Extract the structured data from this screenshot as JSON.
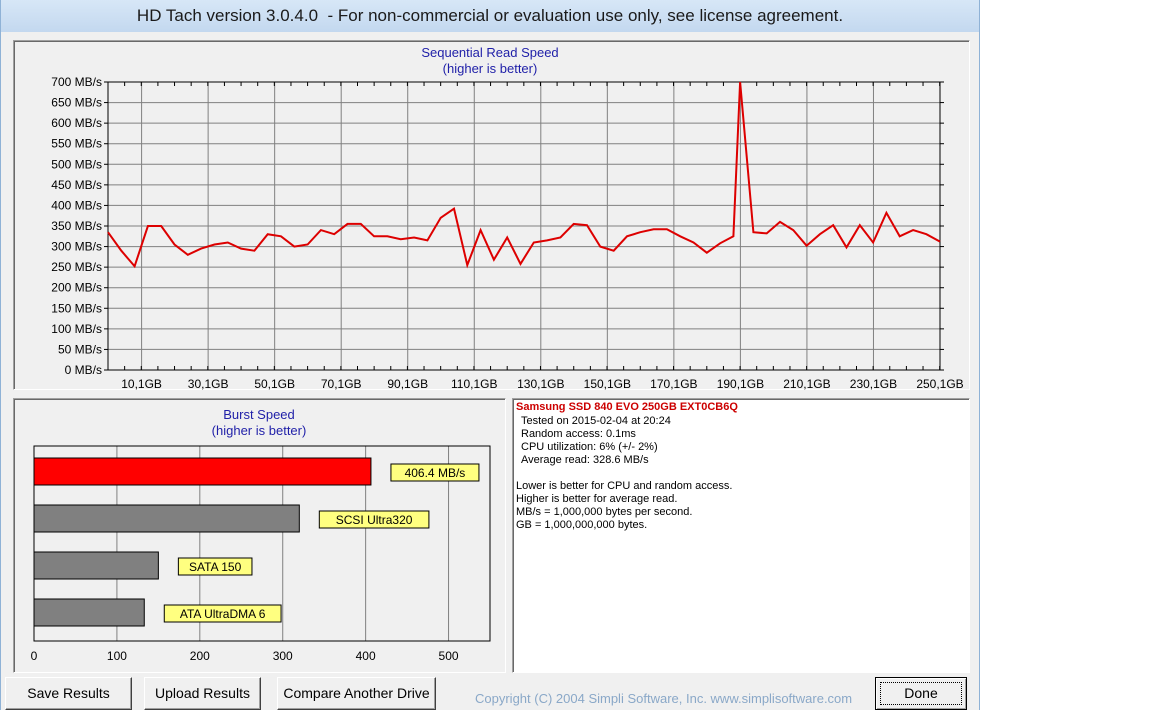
{
  "window": {
    "title": "HD Tach version 3.0.4.0  - For non-commercial or evaluation use only, see license agreement."
  },
  "colors": {
    "line": "#dd0000",
    "chart_title": "#1f1fa8",
    "accent_bar": "#ff0000",
    "grey_bar": "#808080",
    "label_bg": "#ffff80"
  },
  "chart_data": [
    {
      "type": "line",
      "title": "Sequential Read Speed",
      "subtitle": "(higher is better)",
      "y_tick_labels": [
        "700 MB/s",
        "650 MB/s",
        "600 MB/s",
        "550 MB/s",
        "500 MB/s",
        "450 MB/s",
        "400 MB/s",
        "350 MB/s",
        "300 MB/s",
        "250 MB/s",
        "200 MB/s",
        "150 MB/s",
        "100 MB/s",
        "50 MB/s",
        "0 MB/s"
      ],
      "y_ticks": [
        700,
        650,
        600,
        550,
        500,
        450,
        400,
        350,
        300,
        250,
        200,
        150,
        100,
        50,
        0
      ],
      "x_tick_labels": [
        "10,1GB",
        "30,1GB",
        "50,1GB",
        "70,1GB",
        "90,1GB",
        "110,1GB",
        "130,1GB",
        "150,1GB",
        "170,1GB",
        "190,1GB",
        "210,1GB",
        "230,1GB",
        "250,1GB"
      ],
      "x_ticks": [
        10.1,
        30.1,
        50.1,
        70.1,
        90.1,
        110.1,
        130.1,
        150.1,
        170.1,
        190.1,
        210.1,
        230.1,
        250.1
      ],
      "xlim": [
        0,
        250.1
      ],
      "ylim": [
        0,
        700
      ],
      "grid": true,
      "series": [
        {
          "x": [
            0,
            4,
            8,
            12,
            16,
            20,
            24,
            28,
            32,
            36,
            40,
            44,
            48,
            52,
            56,
            60,
            64,
            68,
            72,
            76,
            80,
            84,
            88,
            92,
            96,
            100,
            104,
            108,
            112,
            116,
            120,
            124,
            128,
            132,
            136,
            140,
            144,
            148,
            152,
            156,
            160,
            164,
            168,
            172,
            176,
            180,
            184,
            188,
            190,
            194,
            198,
            202,
            206,
            210,
            214,
            218,
            222,
            226,
            230,
            234,
            238,
            242,
            246,
            250.1
          ],
          "y": [
            335,
            290,
            252,
            350,
            350,
            305,
            280,
            295,
            305,
            310,
            295,
            290,
            330,
            325,
            300,
            305,
            340,
            330,
            355,
            355,
            325,
            325,
            318,
            322,
            315,
            370,
            392,
            255,
            340,
            268,
            322,
            258,
            310,
            315,
            322,
            355,
            352,
            300,
            290,
            325,
            335,
            342,
            342,
            325,
            310,
            285,
            308,
            325,
            700,
            335,
            332,
            360,
            340,
            302,
            330,
            352,
            298,
            352,
            310,
            382,
            325,
            340,
            330,
            312
          ]
        }
      ]
    },
    {
      "type": "bar",
      "orientation": "horizontal",
      "title": "Burst Speed",
      "subtitle": "(higher is better)",
      "categories": [
        "406.4 MB/s",
        "SCSI Ultra320",
        "SATA 150",
        "ATA UltraDMA 6"
      ],
      "values": [
        406.4,
        320,
        150,
        133
      ],
      "x_ticks": [
        0,
        100,
        200,
        300,
        400,
        500
      ],
      "xlim": [
        0,
        550
      ],
      "grid": true
    }
  ],
  "info": {
    "drive_name": "Samsung SSD 840 EVO 250GB EXT0CB6Q",
    "tested_on": "Tested on 2015-02-04 at 20:24",
    "random_access": "Random access: 0.1ms",
    "cpu_utilization": "CPU utilization: 6% (+/- 2%)",
    "average_read": "Average read: 328.6 MB/s",
    "note1": "Lower is better for CPU and random access.",
    "note2": "Higher is better for average read.",
    "note3": "MB/s = 1,000,000 bytes per second.",
    "note4": "GB = 1,000,000,000 bytes."
  },
  "buttons": {
    "save_results": "Save Results",
    "upload_results": "Upload Results",
    "compare_another_drive": "Compare Another Drive",
    "done": "Done"
  },
  "copyright": "Copyright (C) 2004 Simpli Software, Inc. www.simplisoftware.com"
}
